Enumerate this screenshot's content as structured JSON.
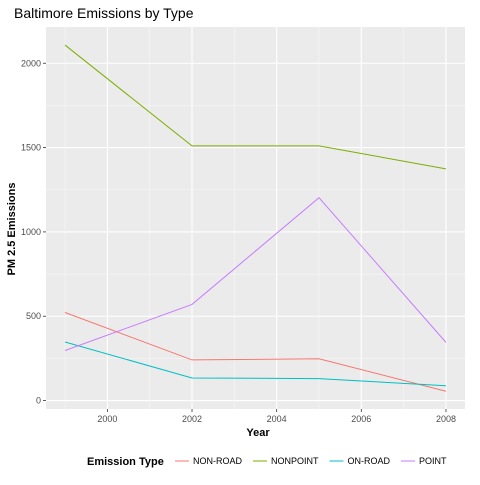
{
  "chart_data": {
    "type": "line",
    "title": "Baltimore Emissions by Type",
    "xlabel": "Year",
    "ylabel": "PM 2.5 Emissions",
    "x": [
      1999,
      2002,
      2005,
      2008
    ],
    "xlim": [
      1998.55,
      2008.45
    ],
    "ylim": [
      -50,
      2215
    ],
    "x_ticks": [
      2000,
      2002,
      2004,
      2006,
      2008
    ],
    "y_ticks": [
      0,
      500,
      1000,
      1500,
      2000
    ],
    "grid": true,
    "legend": {
      "title": "Emission Type",
      "placement": "bottom"
    },
    "series": [
      {
        "name": "NON-ROAD",
        "color": "#F8766D",
        "values": [
          522,
          241,
          248,
          55
        ]
      },
      {
        "name": "NONPOINT",
        "color": "#7CAE00",
        "values": [
          2108,
          1510,
          1510,
          1374
        ]
      },
      {
        "name": "ON-ROAD",
        "color": "#00BFC4",
        "values": [
          347,
          134,
          130,
          88
        ]
      },
      {
        "name": "POINT",
        "color": "#C77CFF",
        "values": [
          297,
          570,
          1203,
          345
        ]
      }
    ]
  }
}
